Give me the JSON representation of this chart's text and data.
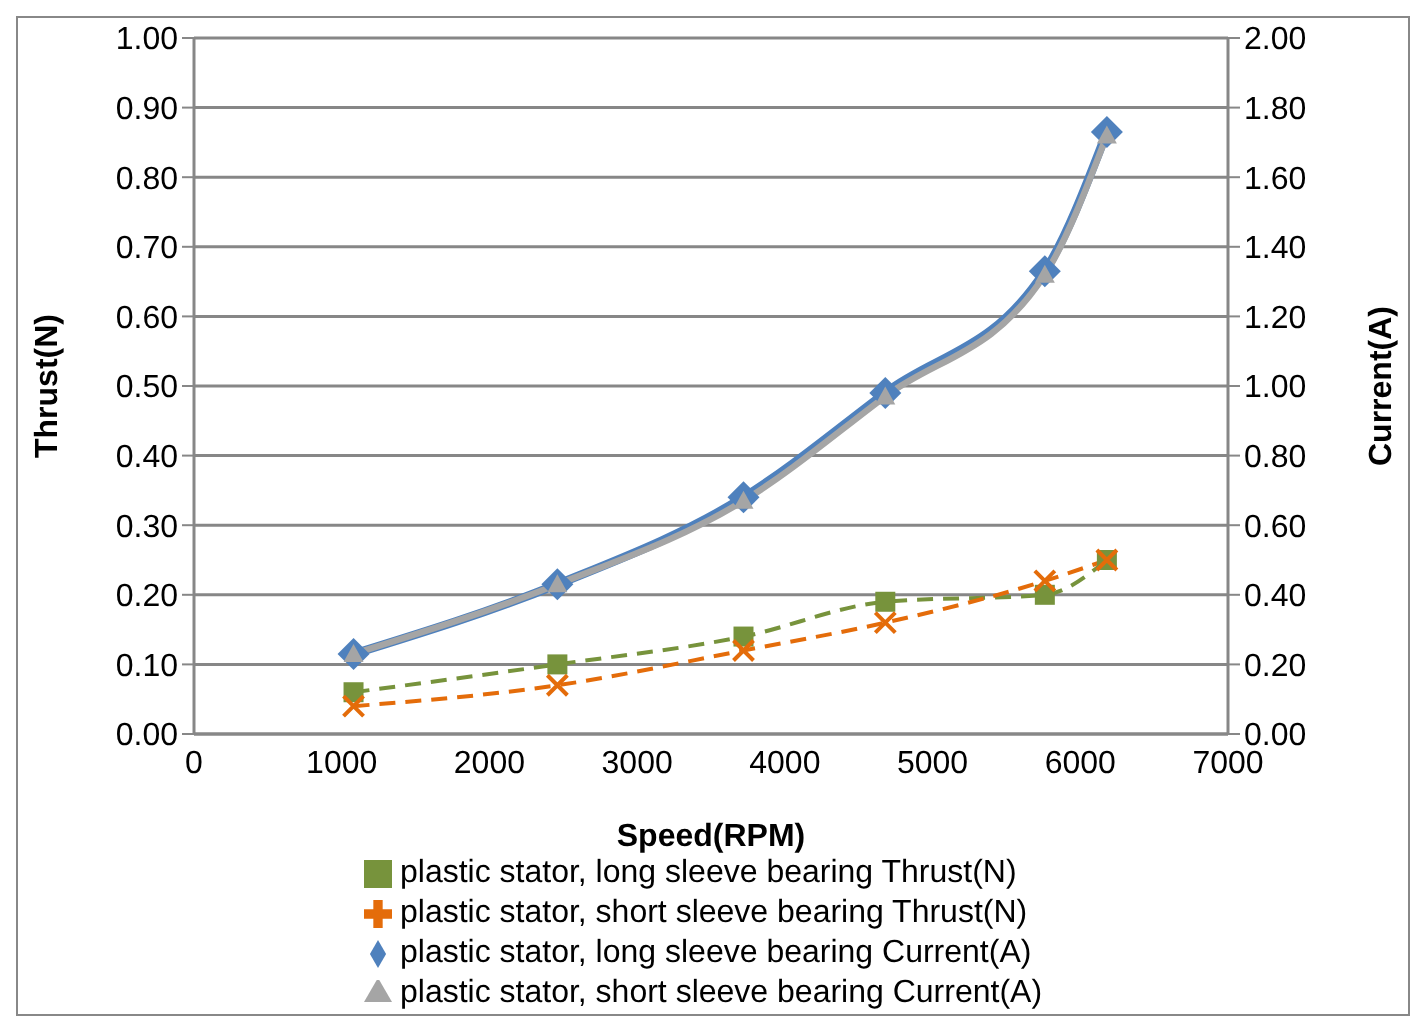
{
  "chart_data": {
    "type": "line",
    "xlabel": "Speed(RPM)",
    "ylabel": "Thrust(N)",
    "y2label": "Current(A)",
    "x": [
      1080,
      2460,
      3720,
      4680,
      5760,
      6180
    ],
    "xlim": [
      0,
      7000
    ],
    "xticks": [
      0,
      1000,
      2000,
      3000,
      4000,
      5000,
      6000,
      7000
    ],
    "ylim": [
      0,
      1
    ],
    "yticks": [
      {
        "value": 0,
        "label": "0.00"
      },
      {
        "value": 0.1,
        "label": "0.10"
      },
      {
        "value": 0.2,
        "label": "0.20"
      },
      {
        "value": 0.3,
        "label": "0.30"
      },
      {
        "value": 0.4,
        "label": "0.40"
      },
      {
        "value": 0.5,
        "label": "0.50"
      },
      {
        "value": 0.6,
        "label": "0.60"
      },
      {
        "value": 0.7,
        "label": "0.70"
      },
      {
        "value": 0.8,
        "label": "0.80"
      },
      {
        "value": 0.9,
        "label": "0.90"
      },
      {
        "value": 1,
        "label": "1.00"
      }
    ],
    "y2lim": [
      0,
      2
    ],
    "y2ticks": [
      {
        "value": 0,
        "label": "0.00"
      },
      {
        "value": 0.2,
        "label": "0.20"
      },
      {
        "value": 0.4,
        "label": "0.40"
      },
      {
        "value": 0.6,
        "label": "0.60"
      },
      {
        "value": 0.8,
        "label": "0.80"
      },
      {
        "value": 1,
        "label": "1.00"
      },
      {
        "value": 1.2,
        "label": "1.20"
      },
      {
        "value": 1.4,
        "label": "1.40"
      },
      {
        "value": 1.6,
        "label": "1.60"
      },
      {
        "value": 1.8,
        "label": "1.80"
      },
      {
        "value": 2,
        "label": "2.00"
      }
    ],
    "grid": "y",
    "legend": "bottom",
    "series": [
      {
        "name": "plastic stator, long sleeve bearing Thrust(N)",
        "color": "#77933c",
        "marker": "square",
        "line_style": "dashed",
        "values": [
          0.06,
          0.1,
          0.14,
          0.19,
          0.2,
          0.25
        ]
      },
      {
        "name": "plastic stator, short sleeve bearing Thrust(N)",
        "color": "#e46c0a",
        "marker": "cross",
        "line_style": "dashed",
        "values": [
          0.04,
          0.07,
          0.12,
          0.16,
          0.22,
          0.25
        ]
      },
      {
        "name": "plastic stator, long sleeve bearing Current(A)",
        "color": "#4f81bd",
        "marker": "diamond",
        "line_style": "solid",
        "axis": "y2",
        "values": [
          0.23,
          0.43,
          0.68,
          0.98,
          1.33,
          1.73
        ]
      },
      {
        "name": "plastic stator, short sleeve bearing Current(A)",
        "color": "#a5a5a5",
        "marker": "triangle",
        "line_style": "solid",
        "axis": "y2",
        "values": [
          0.23,
          0.43,
          0.67,
          0.97,
          1.32,
          1.72
        ]
      }
    ]
  }
}
